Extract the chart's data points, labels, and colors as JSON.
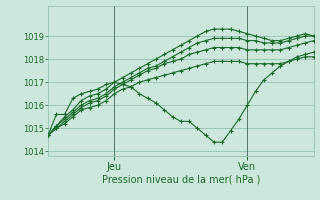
{
  "background_color": "#cce8dc",
  "grid_color": "#88bbaa",
  "line_color": "#1a6b2a",
  "ylim": [
    1013.8,
    1020.3
  ],
  "yticks": [
    1014,
    1015,
    1016,
    1017,
    1018,
    1019
  ],
  "xlim": [
    0,
    32
  ],
  "xtick_positions": [
    8,
    24
  ],
  "xtick_labels": [
    "Jeu",
    "Ven"
  ],
  "vline_positions": [
    8,
    24
  ],
  "xlabel": "Pression niveau de la mer( hPa )",
  "series": [
    {
      "x": [
        0,
        1,
        2,
        3,
        4,
        5,
        6,
        7,
        8,
        9,
        10,
        11,
        12,
        13,
        14,
        15,
        16,
        17,
        18,
        19,
        20,
        21,
        22,
        23,
        24,
        25,
        26,
        27,
        28,
        29,
        30,
        31,
        32
      ],
      "y": [
        1014.7,
        1015.1,
        1015.5,
        1015.8,
        1016.2,
        1016.4,
        1016.5,
        1016.7,
        1017.0,
        1017.2,
        1017.4,
        1017.6,
        1017.8,
        1018.0,
        1018.2,
        1018.4,
        1018.6,
        1018.8,
        1019.0,
        1019.2,
        1019.3,
        1019.3,
        1019.3,
        1019.2,
        1019.1,
        1019.0,
        1018.9,
        1018.8,
        1018.8,
        1018.9,
        1019.0,
        1019.1,
        1019.0
      ]
    },
    {
      "x": [
        0,
        1,
        2,
        3,
        4,
        5,
        6,
        7,
        8,
        9,
        10,
        11,
        12,
        13,
        14,
        15,
        16,
        17,
        18,
        19,
        20,
        21,
        22,
        23,
        24,
        25,
        26,
        27,
        28,
        29,
        30,
        31,
        32
      ],
      "y": [
        1014.7,
        1015.1,
        1015.4,
        1015.7,
        1016.0,
        1016.2,
        1016.3,
        1016.5,
        1016.8,
        1017.0,
        1017.2,
        1017.4,
        1017.6,
        1017.7,
        1017.9,
        1018.1,
        1018.3,
        1018.5,
        1018.7,
        1018.8,
        1018.9,
        1018.9,
        1018.9,
        1018.9,
        1018.8,
        1018.8,
        1018.7,
        1018.7,
        1018.7,
        1018.8,
        1018.9,
        1019.0,
        1019.0
      ]
    },
    {
      "x": [
        0,
        1,
        2,
        3,
        4,
        5,
        6,
        7,
        8,
        9,
        10,
        11,
        12,
        13,
        14,
        15,
        16,
        17,
        18,
        19,
        20,
        21,
        22,
        23,
        24,
        25,
        26,
        27,
        28,
        29,
        30,
        31,
        32
      ],
      "y": [
        1014.7,
        1015.0,
        1015.3,
        1015.6,
        1015.9,
        1016.1,
        1016.2,
        1016.4,
        1016.7,
        1016.9,
        1017.1,
        1017.3,
        1017.5,
        1017.6,
        1017.8,
        1017.9,
        1018.0,
        1018.2,
        1018.3,
        1018.4,
        1018.5,
        1018.5,
        1018.5,
        1018.5,
        1018.4,
        1018.4,
        1018.4,
        1018.4,
        1018.4,
        1018.5,
        1018.6,
        1018.7,
        1018.8
      ]
    },
    {
      "x": [
        0,
        1,
        2,
        3,
        4,
        5,
        6,
        7,
        8,
        9,
        10,
        11,
        12,
        13,
        14,
        15,
        16,
        17,
        18,
        19,
        20,
        21,
        22,
        23,
        24,
        25,
        26,
        27,
        28,
        29,
        30,
        31,
        32
      ],
      "y": [
        1014.7,
        1015.0,
        1015.2,
        1015.5,
        1015.8,
        1015.9,
        1016.0,
        1016.2,
        1016.5,
        1016.7,
        1016.8,
        1017.0,
        1017.1,
        1017.2,
        1017.3,
        1017.4,
        1017.5,
        1017.6,
        1017.7,
        1017.8,
        1017.9,
        1017.9,
        1017.9,
        1017.9,
        1017.8,
        1017.8,
        1017.8,
        1017.8,
        1017.8,
        1017.9,
        1018.0,
        1018.1,
        1018.1
      ]
    },
    {
      "x": [
        0,
        1,
        2,
        3,
        4,
        5,
        6,
        7,
        8,
        9,
        10,
        11,
        12,
        13,
        14,
        15,
        16,
        17,
        18,
        19,
        20,
        21,
        22,
        23,
        24,
        25,
        26,
        27,
        28,
        29,
        30,
        31,
        32
      ],
      "y": [
        1014.7,
        1015.6,
        1015.6,
        1016.3,
        1016.5,
        1016.6,
        1016.7,
        1016.9,
        1017.0,
        1016.9,
        1016.8,
        1016.5,
        1016.3,
        1016.1,
        1015.8,
        1015.5,
        1015.3,
        1015.3,
        1015.0,
        1014.7,
        1014.4,
        1014.4,
        1014.9,
        1015.4,
        1016.0,
        1016.6,
        1017.1,
        1017.4,
        1017.7,
        1017.9,
        1018.1,
        1018.2,
        1018.3
      ]
    }
  ]
}
